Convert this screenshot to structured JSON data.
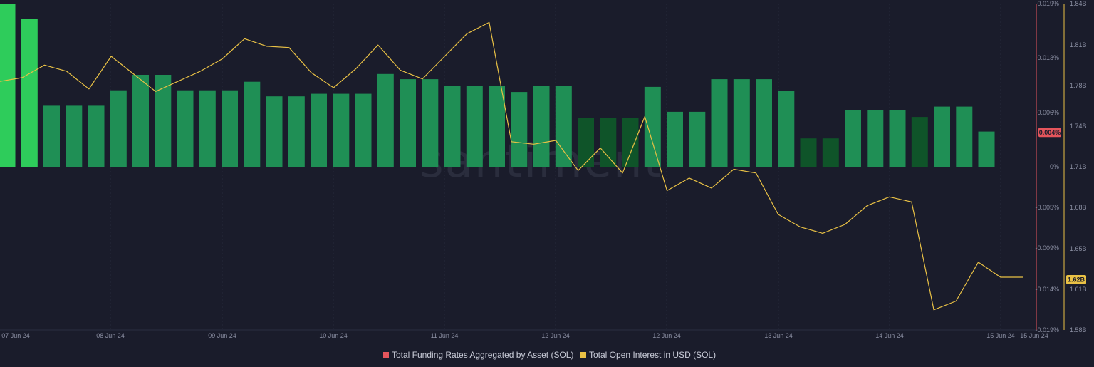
{
  "chart_data": {
    "type": "bar",
    "watermark": "santiment",
    "x_ticks": [
      "07 Jun 24",
      "08 Jun 24",
      "09 Jun 24",
      "10 Jun 24",
      "11 Jun 24",
      "12 Jun 24",
      "12 Jun 24",
      "13 Jun 24",
      "14 Jun 24",
      "15 Jun 24",
      "15 Jun 24"
    ],
    "y_left": {
      "ticks": [
        "0.019%",
        "0.013%",
        "0.006%",
        "0%",
        "-0.005%",
        "-0.009%",
        "-0.014%",
        "-0.019%"
      ],
      "range": [
        -0.019,
        0.019
      ],
      "current_label": "0.004%",
      "current_value": 0.004,
      "color": "#e5555c"
    },
    "y_right": {
      "ticks": [
        "1.84B",
        "1.81B",
        "1.78B",
        "1.74B",
        "1.71B",
        "1.68B",
        "1.65B",
        "1.61B",
        "1.58B"
      ],
      "range": [
        1.58,
        1.84
      ],
      "current_label": "1.62B",
      "current_value": 1.62,
      "color": "#e9c145"
    },
    "series": [
      {
        "name": "Total Funding Rates Aggregated by Asset (SOL)",
        "kind": "bar",
        "legend_color": "#e5555c",
        "values": [
          0.019,
          0.0172,
          0.0071,
          0.0071,
          0.0071,
          0.0089,
          0.0107,
          0.0107,
          0.0089,
          0.0089,
          0.0089,
          0.0099,
          0.0082,
          0.0082,
          0.0085,
          0.0085,
          0.0085,
          0.0108,
          0.0102,
          0.0102,
          0.0094,
          0.0094,
          0.0094,
          0.0087,
          0.0094,
          0.0094,
          0.0057,
          0.0057,
          0.0057,
          0.0093,
          0.0064,
          0.0064,
          0.0102,
          0.0102,
          0.0102,
          0.0088,
          0.0033,
          0.0033,
          0.0066,
          0.0066,
          0.0066,
          0.0058,
          0.007,
          0.007,
          0.0041
        ],
        "bar_shades": [
          "bright",
          "bright",
          "mid",
          "mid",
          "mid",
          "mid",
          "mid",
          "mid",
          "mid",
          "mid",
          "mid",
          "mid",
          "mid",
          "mid",
          "mid",
          "mid",
          "mid",
          "mid",
          "mid",
          "mid",
          "mid",
          "mid",
          "mid",
          "mid",
          "mid",
          "mid",
          "dark",
          "dark",
          "dark",
          "mid",
          "mid",
          "mid",
          "mid",
          "mid",
          "mid",
          "mid",
          "dark",
          "dark",
          "mid",
          "mid",
          "mid",
          "dark",
          "mid",
          "mid",
          "mid"
        ]
      },
      {
        "name": "Total Open Interest in USD (SOL)",
        "kind": "line",
        "legend_color": "#e9c145",
        "values": [
          1.778,
          1.781,
          1.791,
          1.786,
          1.772,
          1.798,
          1.784,
          1.77,
          1.778,
          1.786,
          1.796,
          1.812,
          1.806,
          1.805,
          1.785,
          1.773,
          1.788,
          1.807,
          1.787,
          1.78,
          1.798,
          1.816,
          1.825,
          1.73,
          1.728,
          1.731,
          1.707,
          1.725,
          1.705,
          1.75,
          1.691,
          1.701,
          1.693,
          1.708,
          1.705,
          1.672,
          1.662,
          1.657,
          1.664,
          1.679,
          1.686,
          1.682,
          1.596,
          1.603,
          1.634,
          1.622,
          1.622
        ]
      }
    ],
    "grid": true,
    "legend_position": "bottom-center"
  }
}
